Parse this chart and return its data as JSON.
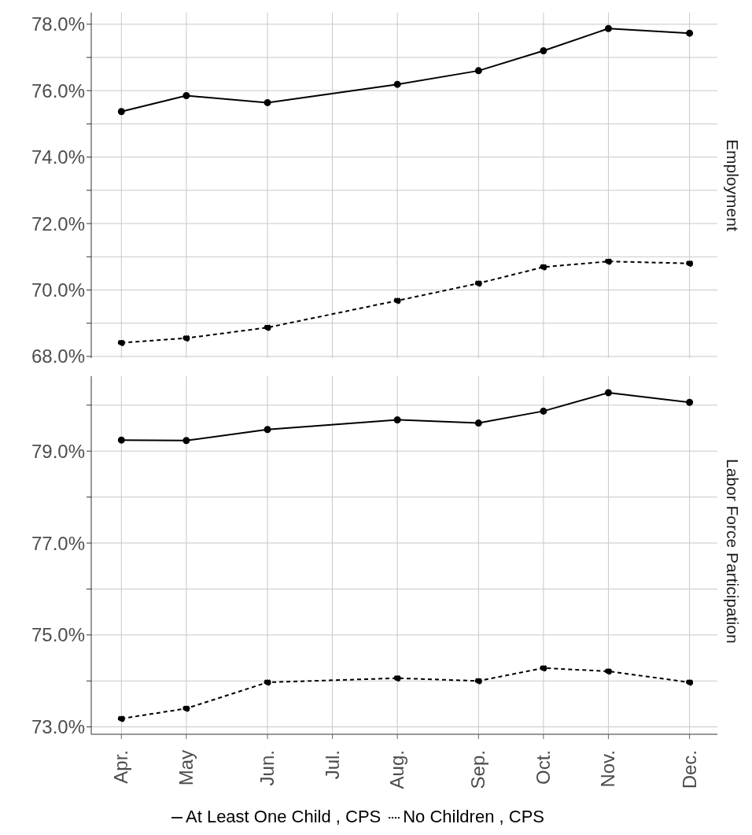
{
  "chart_data": [
    {
      "type": "line",
      "title": "Employment",
      "x": [
        "--04-12",
        "--05-10",
        "--06-14",
        "--08-09",
        "--09-13",
        "--10-11",
        "--11-08",
        "--12-13"
      ],
      "series": [
        {
          "color": "#000000",
          "line_style": "solid",
          "values": [
            75.37,
            75.85,
            75.64,
            76.19,
            76.6,
            77.2,
            77.87,
            77.73
          ]
        },
        {
          "color": "#000000",
          "line_style": "dashed",
          "values": [
            68.41,
            68.55,
            68.87,
            69.68,
            70.2,
            70.69,
            70.86,
            70.8
          ]
        }
      ],
      "xlim": [
        "--03-30",
        "--12-25"
      ],
      "xticks": [
        {
          "value": "--04-12",
          "label": null
        },
        {
          "value": "--05-10",
          "label": null
        },
        {
          "value": "--06-14",
          "label": null
        },
        {
          "value": "--07-12",
          "label": null
        },
        {
          "value": "--08-09",
          "label": null
        },
        {
          "value": "--09-13",
          "label": null
        },
        {
          "value": "--10-11",
          "label": null
        },
        {
          "value": "--11-08",
          "label": null
        },
        {
          "value": "--12-13",
          "label": null
        }
      ],
      "ylim": [
        67.95,
        78.35
      ],
      "yticks": [
        {
          "value": 68,
          "label": "68.0%"
        },
        {
          "value": 69,
          "label": null
        },
        {
          "value": 70,
          "label": "70.0%"
        },
        {
          "value": 71,
          "label": null
        },
        {
          "value": 72,
          "label": "72.0%"
        },
        {
          "value": 73,
          "label": null
        },
        {
          "value": 74,
          "label": "74.0%"
        },
        {
          "value": 75,
          "label": null
        },
        {
          "value": 76,
          "label": "76.0%"
        },
        {
          "value": 77,
          "label": null
        },
        {
          "value": 78,
          "label": "78.0%"
        }
      ],
      "tick_labels": "y",
      "grid": true,
      "marker": "circle"
    },
    {
      "type": "line",
      "title": "Labor Force Participation",
      "x": [
        "--04-12",
        "--05-10",
        "--06-14",
        "--08-09",
        "--09-13",
        "--10-11",
        "--11-08",
        "--12-13"
      ],
      "series": [
        {
          "name": "At Least One Child ,  CPS",
          "color": "#000000",
          "line_style": "solid",
          "values": [
            79.24,
            79.23,
            79.47,
            79.68,
            79.61,
            79.87,
            80.27,
            80.06
          ]
        },
        {
          "name": "No Children ,  CPS",
          "color": "#000000",
          "line_style": "dashed",
          "values": [
            73.18,
            73.4,
            73.97,
            74.06,
            74.0,
            74.28,
            74.21,
            73.97
          ]
        }
      ],
      "xlim": [
        "--03-30",
        "--12-25"
      ],
      "xticks": [
        {
          "value": "--04-12",
          "label": "Apr."
        },
        {
          "value": "--05-10",
          "label": "May"
        },
        {
          "value": "--06-14",
          "label": "Jun."
        },
        {
          "value": "--07-12",
          "label": "Jul."
        },
        {
          "value": "--08-09",
          "label": "Aug."
        },
        {
          "value": "--09-13",
          "label": "Sep."
        },
        {
          "value": "--10-11",
          "label": "Oct."
        },
        {
          "value": "--11-08",
          "label": "Nov."
        },
        {
          "value": "--12-13",
          "label": "Dec."
        }
      ],
      "ylim": [
        72.84,
        80.63
      ],
      "yticks": [
        {
          "value": 73,
          "label": "73.0%"
        },
        {
          "value": 74,
          "label": null
        },
        {
          "value": 75,
          "label": "75.0%"
        },
        {
          "value": 76,
          "label": null
        },
        {
          "value": 77,
          "label": "77.0%"
        },
        {
          "value": 78,
          "label": null
        },
        {
          "value": 79,
          "label": "79.0%"
        },
        {
          "value": 80,
          "label": null
        }
      ],
      "grid": true,
      "marker": "circle",
      "legend": "bottom"
    }
  ]
}
